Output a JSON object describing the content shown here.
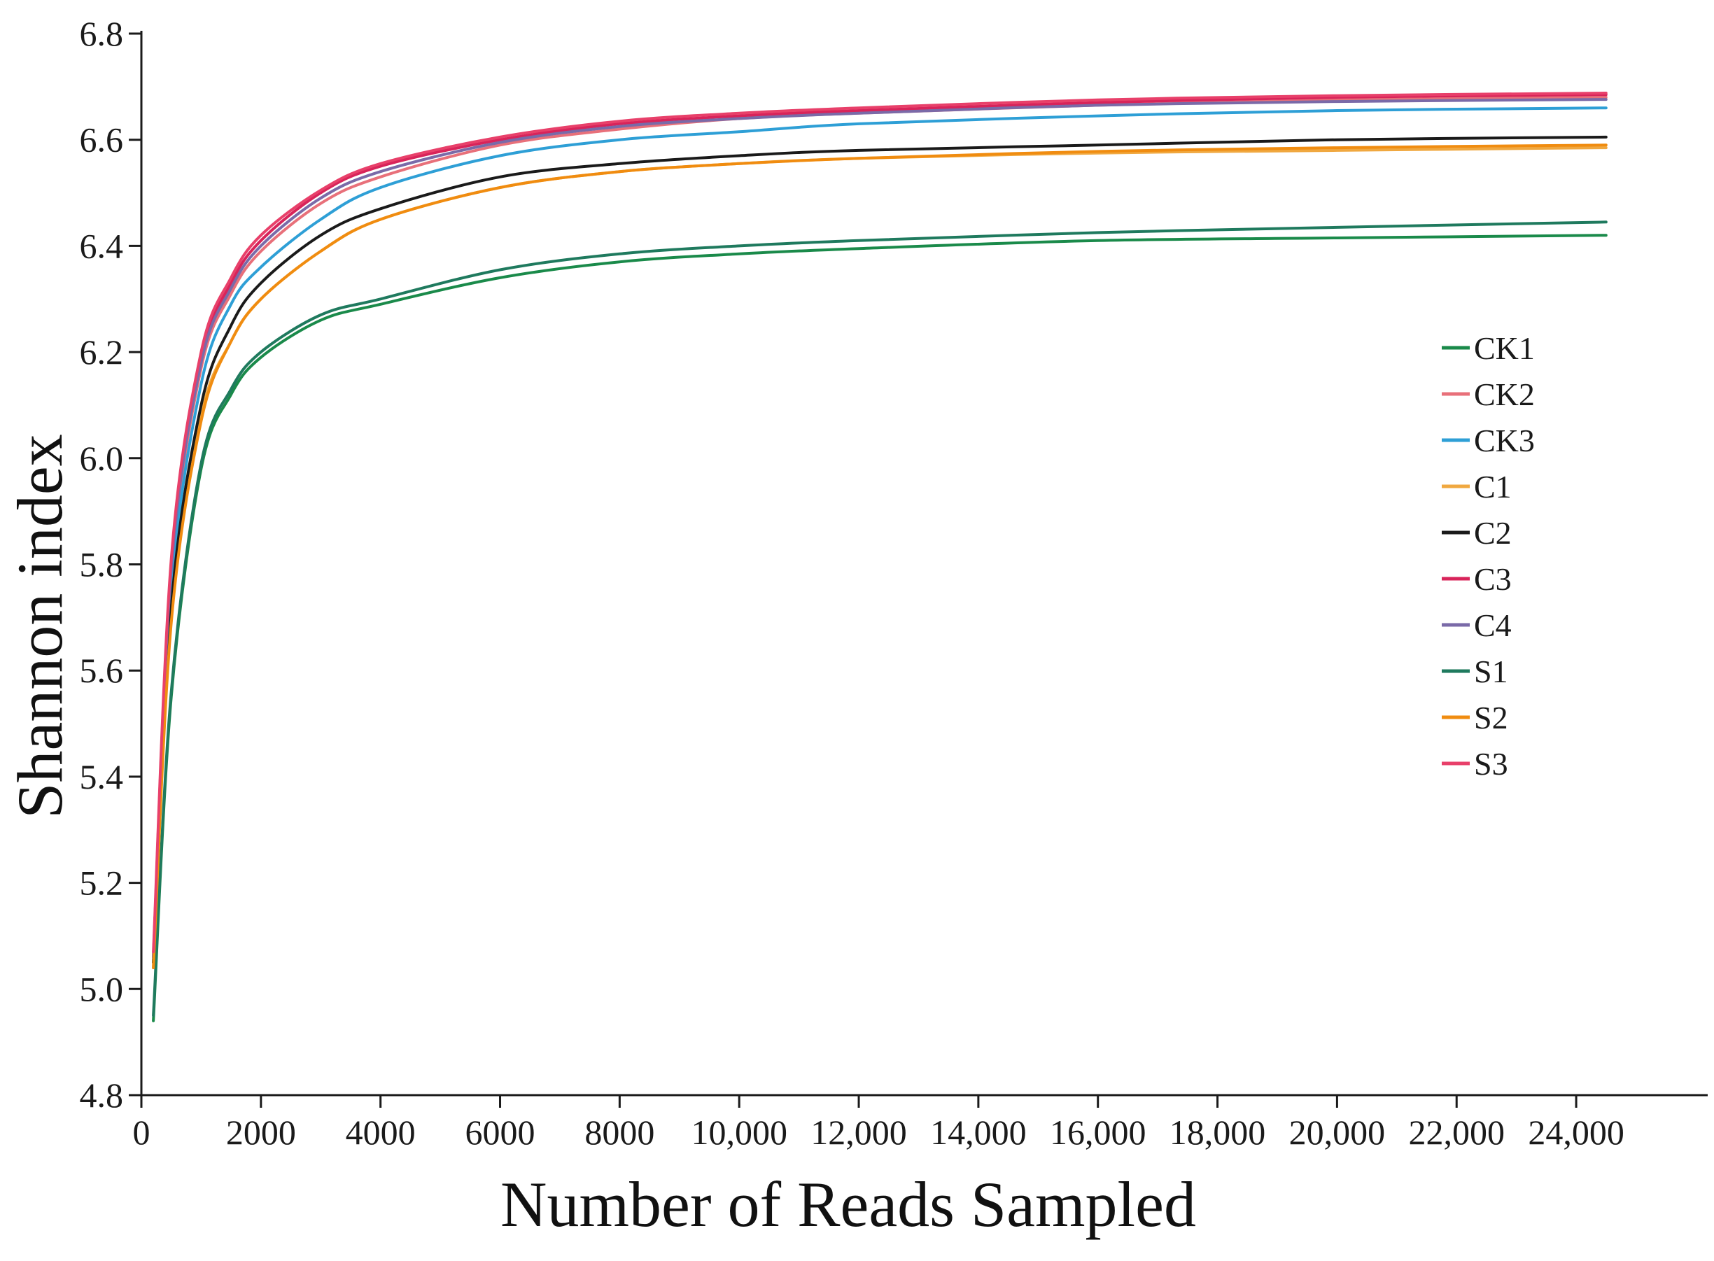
{
  "chart_data": {
    "type": "line",
    "title": "",
    "xlabel": "Number of Reads Sampled",
    "ylabel": "Shannon index",
    "xlim": [
      0,
      24500
    ],
    "ylim": [
      4.8,
      6.8
    ],
    "x_ticks": [
      0,
      2000,
      4000,
      6000,
      8000,
      10000,
      12000,
      14000,
      16000,
      18000,
      20000,
      22000,
      24000
    ],
    "x_tick_labels": [
      "0",
      "2000",
      "4000",
      "6000",
      "8000",
      "10,000",
      "12,000",
      "14,000",
      "16,000",
      "18,000",
      "20,000",
      "22,000",
      "24,000"
    ],
    "y_ticks": [
      4.8,
      5.0,
      5.2,
      5.4,
      5.6,
      5.8,
      6.0,
      6.2,
      6.4,
      6.6,
      6.8
    ],
    "y_tick_labels": [
      "4.8",
      "5.0",
      "5.2",
      "5.4",
      "5.6",
      "5.8",
      "6.0",
      "6.2",
      "6.4",
      "6.6",
      "6.8"
    ],
    "grid": false,
    "legend_position": "right",
    "x": [
      200,
      500,
      1000,
      1500,
      2000,
      3000,
      4000,
      6000,
      8000,
      10000,
      12000,
      16000,
      20000,
      24500
    ],
    "series": [
      {
        "name": "CK1",
        "color": "#1a8a4a",
        "values": [
          4.94,
          5.55,
          5.98,
          6.12,
          6.19,
          6.26,
          6.29,
          6.34,
          6.37,
          6.385,
          6.395,
          6.41,
          6.415,
          6.42
        ]
      },
      {
        "name": "CK2",
        "color": "#e8707a",
        "values": [
          5.06,
          5.78,
          6.17,
          6.31,
          6.39,
          6.48,
          6.53,
          6.59,
          6.62,
          6.64,
          6.65,
          6.665,
          6.675,
          6.68
        ]
      },
      {
        "name": "CK3",
        "color": "#2e9fd6",
        "values": [
          5.05,
          5.75,
          6.14,
          6.29,
          6.36,
          6.45,
          6.51,
          6.57,
          6.6,
          6.615,
          6.63,
          6.645,
          6.655,
          6.66
        ]
      },
      {
        "name": "C1",
        "color": "#f0a840",
        "values": [
          5.04,
          5.7,
          6.08,
          6.22,
          6.3,
          6.39,
          6.45,
          6.51,
          6.54,
          6.555,
          6.565,
          6.575,
          6.58,
          6.585
        ]
      },
      {
        "name": "C2",
        "color": "#1a1a1a",
        "values": [
          5.05,
          5.72,
          6.1,
          6.25,
          6.33,
          6.42,
          6.47,
          6.53,
          6.555,
          6.57,
          6.58,
          6.59,
          6.6,
          6.605
        ]
      },
      {
        "name": "C3",
        "color": "#d8245a",
        "values": [
          5.06,
          5.8,
          6.19,
          6.33,
          6.41,
          6.5,
          6.55,
          6.6,
          6.63,
          6.645,
          6.655,
          6.67,
          6.68,
          6.685
        ]
      },
      {
        "name": "C4",
        "color": "#7a6aa8",
        "values": [
          5.06,
          5.79,
          6.18,
          6.32,
          6.4,
          6.49,
          6.54,
          6.595,
          6.625,
          6.64,
          6.65,
          6.665,
          6.672,
          6.676
        ]
      },
      {
        "name": "S1",
        "color": "#1f7a5e",
        "values": [
          4.95,
          5.56,
          5.99,
          6.13,
          6.2,
          6.27,
          6.3,
          6.355,
          6.385,
          6.4,
          6.41,
          6.425,
          6.435,
          6.445
        ]
      },
      {
        "name": "S2",
        "color": "#f08c10",
        "values": [
          5.04,
          5.69,
          6.07,
          6.22,
          6.3,
          6.39,
          6.45,
          6.51,
          6.54,
          6.555,
          6.565,
          6.578,
          6.585,
          6.59
        ]
      },
      {
        "name": "S3",
        "color": "#e8406a",
        "values": [
          5.07,
          5.81,
          6.2,
          6.34,
          6.42,
          6.505,
          6.555,
          6.605,
          6.635,
          6.65,
          6.66,
          6.675,
          6.683,
          6.688
        ]
      }
    ]
  }
}
